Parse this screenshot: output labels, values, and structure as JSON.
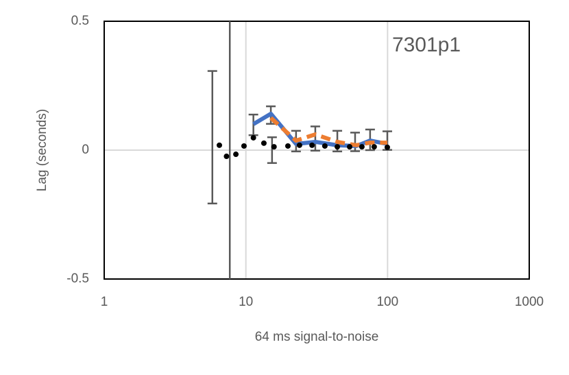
{
  "chart_data": {
    "type": "line",
    "annotation": "7301p1",
    "x_label": "64 ms signal-to-noise",
    "y_label": "Lag (seconds)",
    "xscale": "log",
    "xlim": [
      1,
      1000
    ],
    "xticks": [
      1,
      10,
      100,
      1000
    ],
    "ylim": [
      -0.5,
      0.5
    ],
    "yticks": [
      0.5,
      0,
      -0.5
    ],
    "grid": true,
    "vline": {
      "x": 7.7,
      "color": "#595959"
    },
    "series": [
      {
        "style": "line",
        "color": "#4472c4",
        "x": [
          11.3,
          15.0,
          22.6,
          30.9,
          44.2,
          60.2,
          75.3,
          99.6
        ],
        "values": [
          0.101,
          0.141,
          0.024,
          0.032,
          0.019,
          0.016,
          0.037,
          0.024
        ]
      },
      {
        "style": "dashed",
        "color": "#ed7d31",
        "x": [
          15.0,
          22.6,
          30.9,
          44.2,
          60.2,
          75.3,
          99.6
        ],
        "values": [
          0.125,
          0.037,
          0.061,
          0.032,
          0.019,
          0.029,
          0.029
        ]
      },
      {
        "style": "dots",
        "color": "#000000",
        "x": [
          6.5,
          7.3,
          8.5,
          9.7,
          11.3,
          13.4,
          15.8,
          19.8,
          23.9,
          29.3,
          36.1,
          44.2,
          54.0,
          65.9,
          80.5,
          99.6
        ],
        "values": [
          0.019,
          -0.024,
          -0.016,
          0.016,
          0.048,
          0.027,
          0.013,
          0.016,
          0.019,
          0.019,
          0.016,
          0.013,
          0.013,
          0.013,
          0.013,
          0.011
        ]
      },
      {
        "style": "errorbars",
        "color": "#595959",
        "x": [
          5.8,
          11.3,
          15.0,
          15.3,
          22.6,
          30.9,
          44.2,
          59.0,
          75.3,
          99.6
        ],
        "values": [
          0.05,
          0.098,
          0.136,
          0.0,
          0.035,
          0.045,
          0.035,
          0.032,
          0.04,
          0.037
        ],
        "errors": [
          0.257,
          0.04,
          0.034,
          0.05,
          0.04,
          0.047,
          0.04,
          0.036,
          0.04,
          0.036
        ]
      }
    ]
  }
}
